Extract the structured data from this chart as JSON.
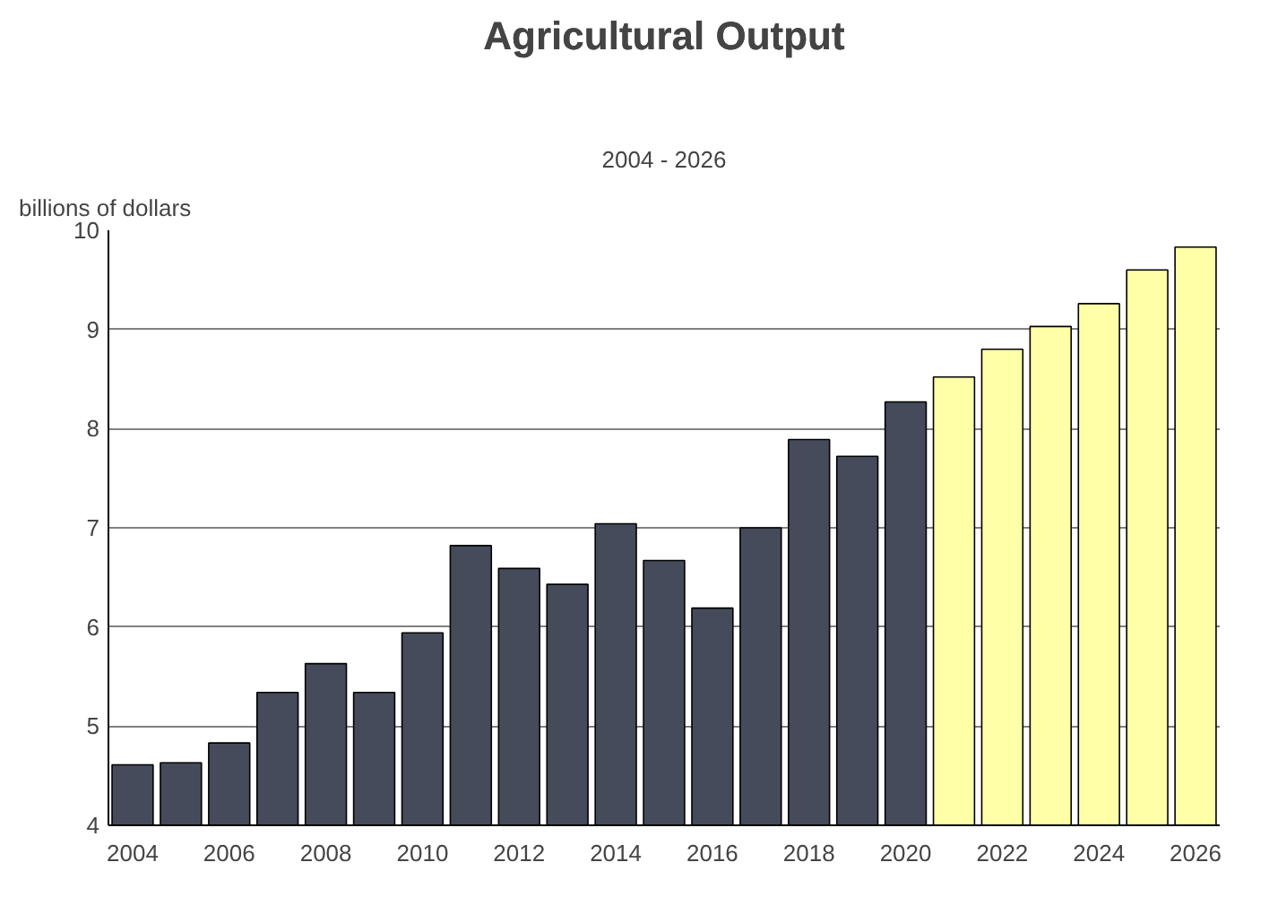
{
  "chart_data": {
    "type": "bar",
    "title": "Agricultural Output",
    "subtitle": "2004 - 2026",
    "ylabel": "billions of dollars",
    "x": [
      2004,
      2005,
      2006,
      2007,
      2008,
      2009,
      2010,
      2011,
      2012,
      2013,
      2014,
      2015,
      2016,
      2017,
      2018,
      2019,
      2020,
      2021,
      2022,
      2023,
      2024,
      2025,
      2026
    ],
    "values": [
      4.61,
      4.63,
      4.83,
      5.34,
      5.63,
      5.34,
      5.94,
      6.82,
      6.59,
      6.43,
      7.04,
      6.67,
      6.19,
      7.0,
      7.89,
      7.72,
      8.27,
      8.52,
      8.8,
      9.03,
      9.26,
      9.6,
      9.83
    ],
    "colors": [
      "#454b5a",
      "#454b5a",
      "#454b5a",
      "#454b5a",
      "#454b5a",
      "#454b5a",
      "#454b5a",
      "#454b5a",
      "#454b5a",
      "#454b5a",
      "#454b5a",
      "#454b5a",
      "#454b5a",
      "#454b5a",
      "#454b5a",
      "#454b5a",
      "#454b5a",
      "#ffffa8",
      "#ffffa8",
      "#ffffa8",
      "#ffffa8",
      "#ffffa8",
      "#ffffa8"
    ],
    "xlim": [
      2003.5,
      2026.5
    ],
    "xticks": [
      2004,
      2006,
      2008,
      2010,
      2012,
      2014,
      2016,
      2018,
      2020,
      2022,
      2024,
      2026
    ],
    "ylim": [
      4,
      10
    ],
    "yticks": [
      4,
      5,
      6,
      7,
      8,
      9,
      10
    ],
    "grid": "y"
  }
}
